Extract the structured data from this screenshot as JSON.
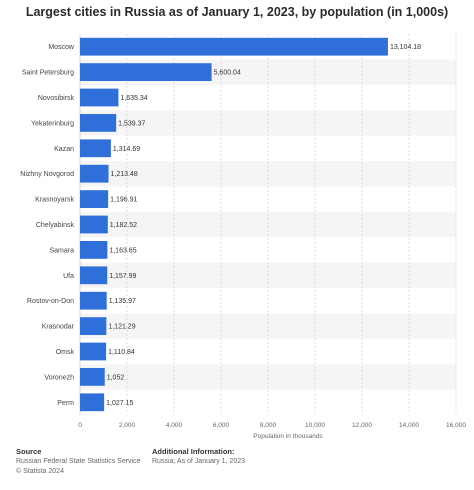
{
  "chart_data": {
    "type": "bar",
    "orientation": "horizontal",
    "title": "Largest cities in Russia as of January 1, 2023, by population (in 1,000s)",
    "xlabel": "Population in thousands",
    "ylabel": "",
    "xlim": [
      0,
      16000
    ],
    "xticks": [
      0,
      2000,
      4000,
      6000,
      8000,
      10000,
      12000,
      14000,
      16000
    ],
    "xtick_labels": [
      "0",
      "2,000",
      "4,000",
      "6,000",
      "8,000",
      "10,000",
      "12,000",
      "14,000",
      "16,000"
    ],
    "grid": true,
    "categories": [
      "Moscow",
      "Saint Petersburg",
      "Novosibirsk",
      "Yekaterinburg",
      "Kazan",
      "Nizhny Novgorod",
      "Krasnoyarsk",
      "Chelyabinsk",
      "Samara",
      "Ufa",
      "Rostov-on-Don",
      "Krasnodar",
      "Omsk",
      "Voronezh",
      "Perm"
    ],
    "values": [
      13104.18,
      5600.04,
      1635.34,
      1539.37,
      1314.69,
      1213.48,
      1196.91,
      1182.52,
      1163.65,
      1157.99,
      1135.97,
      1121.29,
      1110.84,
      1052,
      1027.15
    ],
    "value_labels": [
      "13,104.18",
      "5,600.04",
      "1,635.34",
      "1,539.37",
      "1,314.69",
      "1,213.48",
      "1,196.91",
      "1,182.52",
      "1,163.65",
      "1,157.99",
      "1,135.97",
      "1,121.29",
      "1,110.84",
      "1,052",
      "1,027.15"
    ],
    "bar_color": "#2e6fd9",
    "stripe_color": "#f5f5f5"
  },
  "footer": {
    "source_heading": "Source",
    "source_line1": "Russian Federal State Statistics Service",
    "source_line2": "© Statista 2024",
    "info_heading": "Additional Information:",
    "info_line1": "Russia; As of January 1, 2023"
  }
}
